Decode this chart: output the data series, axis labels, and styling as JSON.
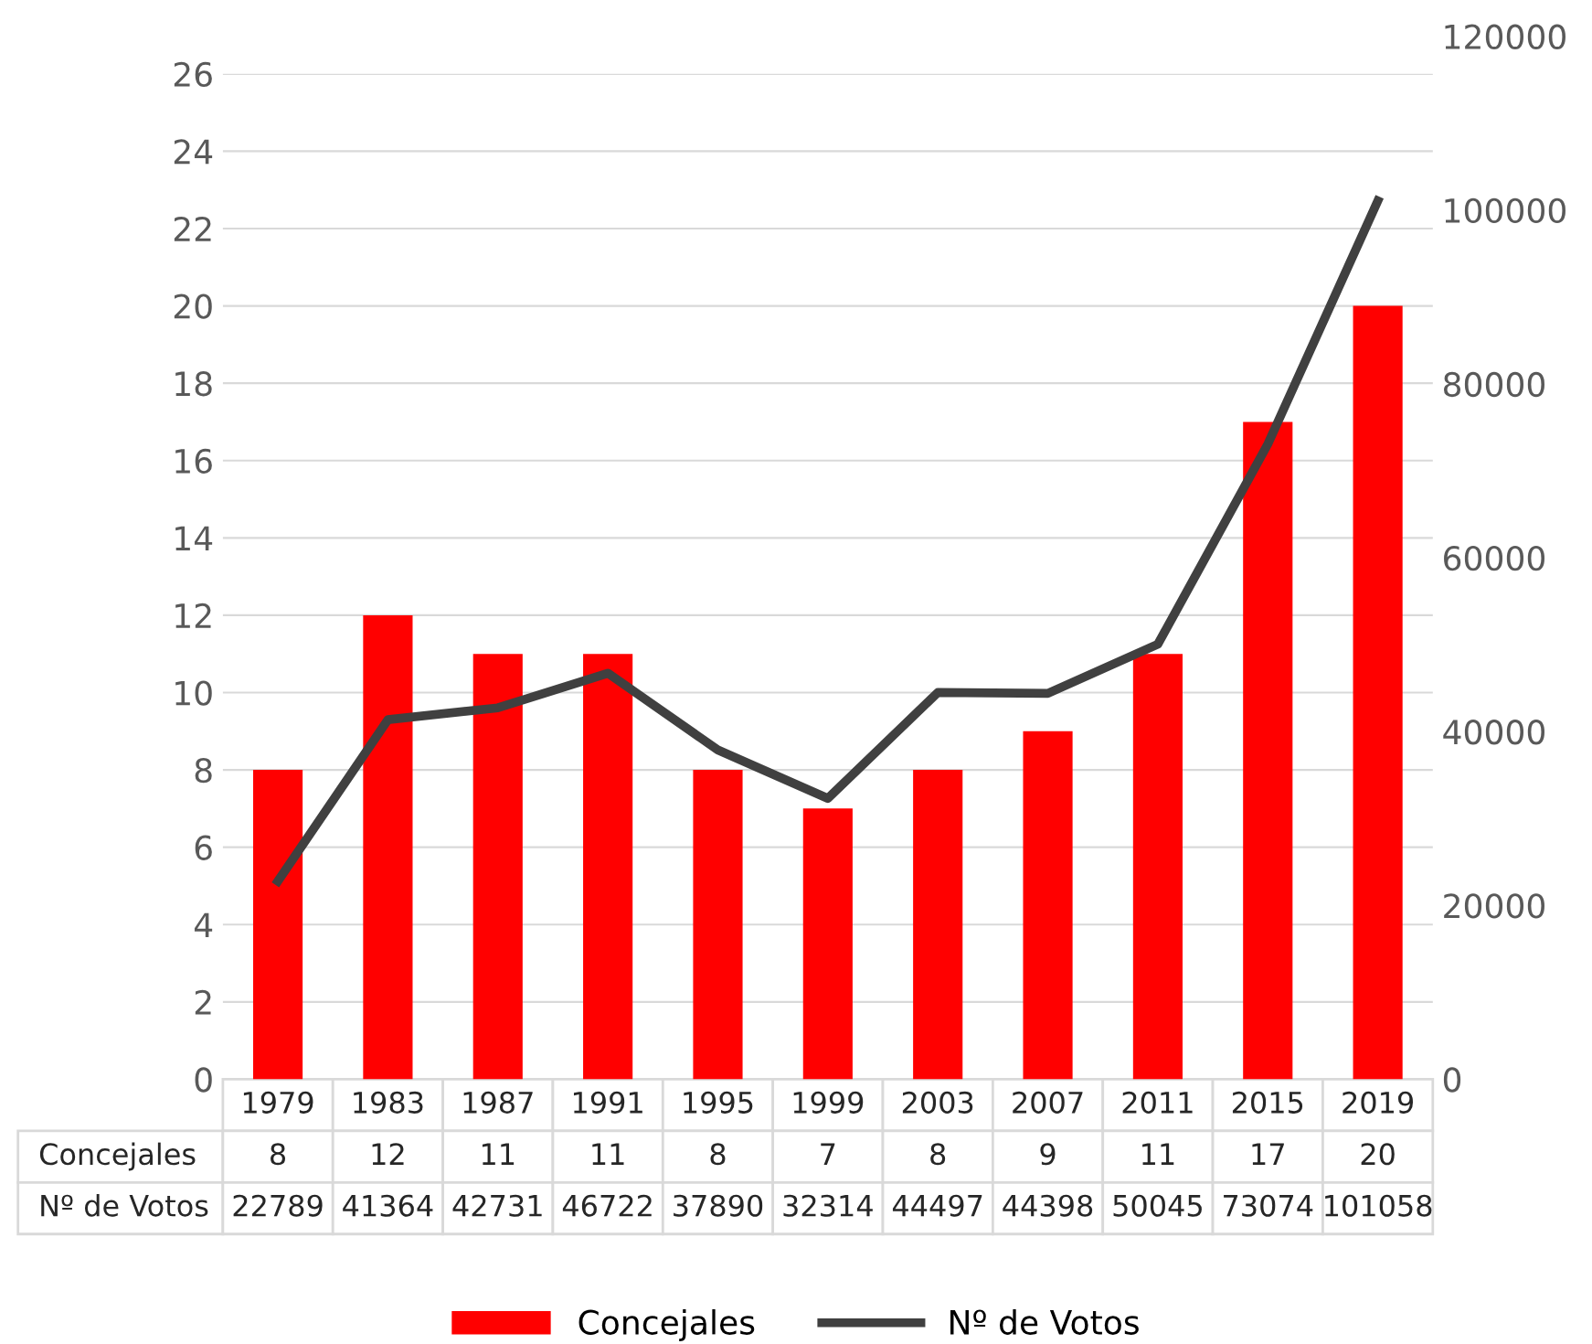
{
  "chart_data": {
    "type": "bar",
    "categories": [
      "1979",
      "1983",
      "1987",
      "1991",
      "1995",
      "1999",
      "2003",
      "2007",
      "2011",
      "2015",
      "2019"
    ],
    "series": [
      {
        "name": "Concejales",
        "color": "#ff0000",
        "values": [
          8,
          12,
          11,
          11,
          8,
          7,
          8,
          9,
          11,
          17,
          20
        ]
      },
      {
        "name": "Nº de Votos",
        "type": "line",
        "axis": "y2",
        "color": "#404040",
        "values": [
          22789,
          41364,
          42731,
          46722,
          37890,
          32314,
          44497,
          44398,
          50045,
          73074,
          101058
        ]
      }
    ],
    "ylim": [
      0,
      26
    ],
    "yticks": [
      0,
      2,
      4,
      6,
      8,
      10,
      12,
      14,
      16,
      18,
      20,
      22,
      24,
      26
    ],
    "y2lim": [
      0,
      120000
    ],
    "y2ticks": [
      0,
      20000,
      40000,
      60000,
      80000,
      100000,
      120000
    ],
    "grid": "y",
    "legend": "bottom",
    "marker": "none",
    "line_style": "solid",
    "data_labels": true
  }
}
